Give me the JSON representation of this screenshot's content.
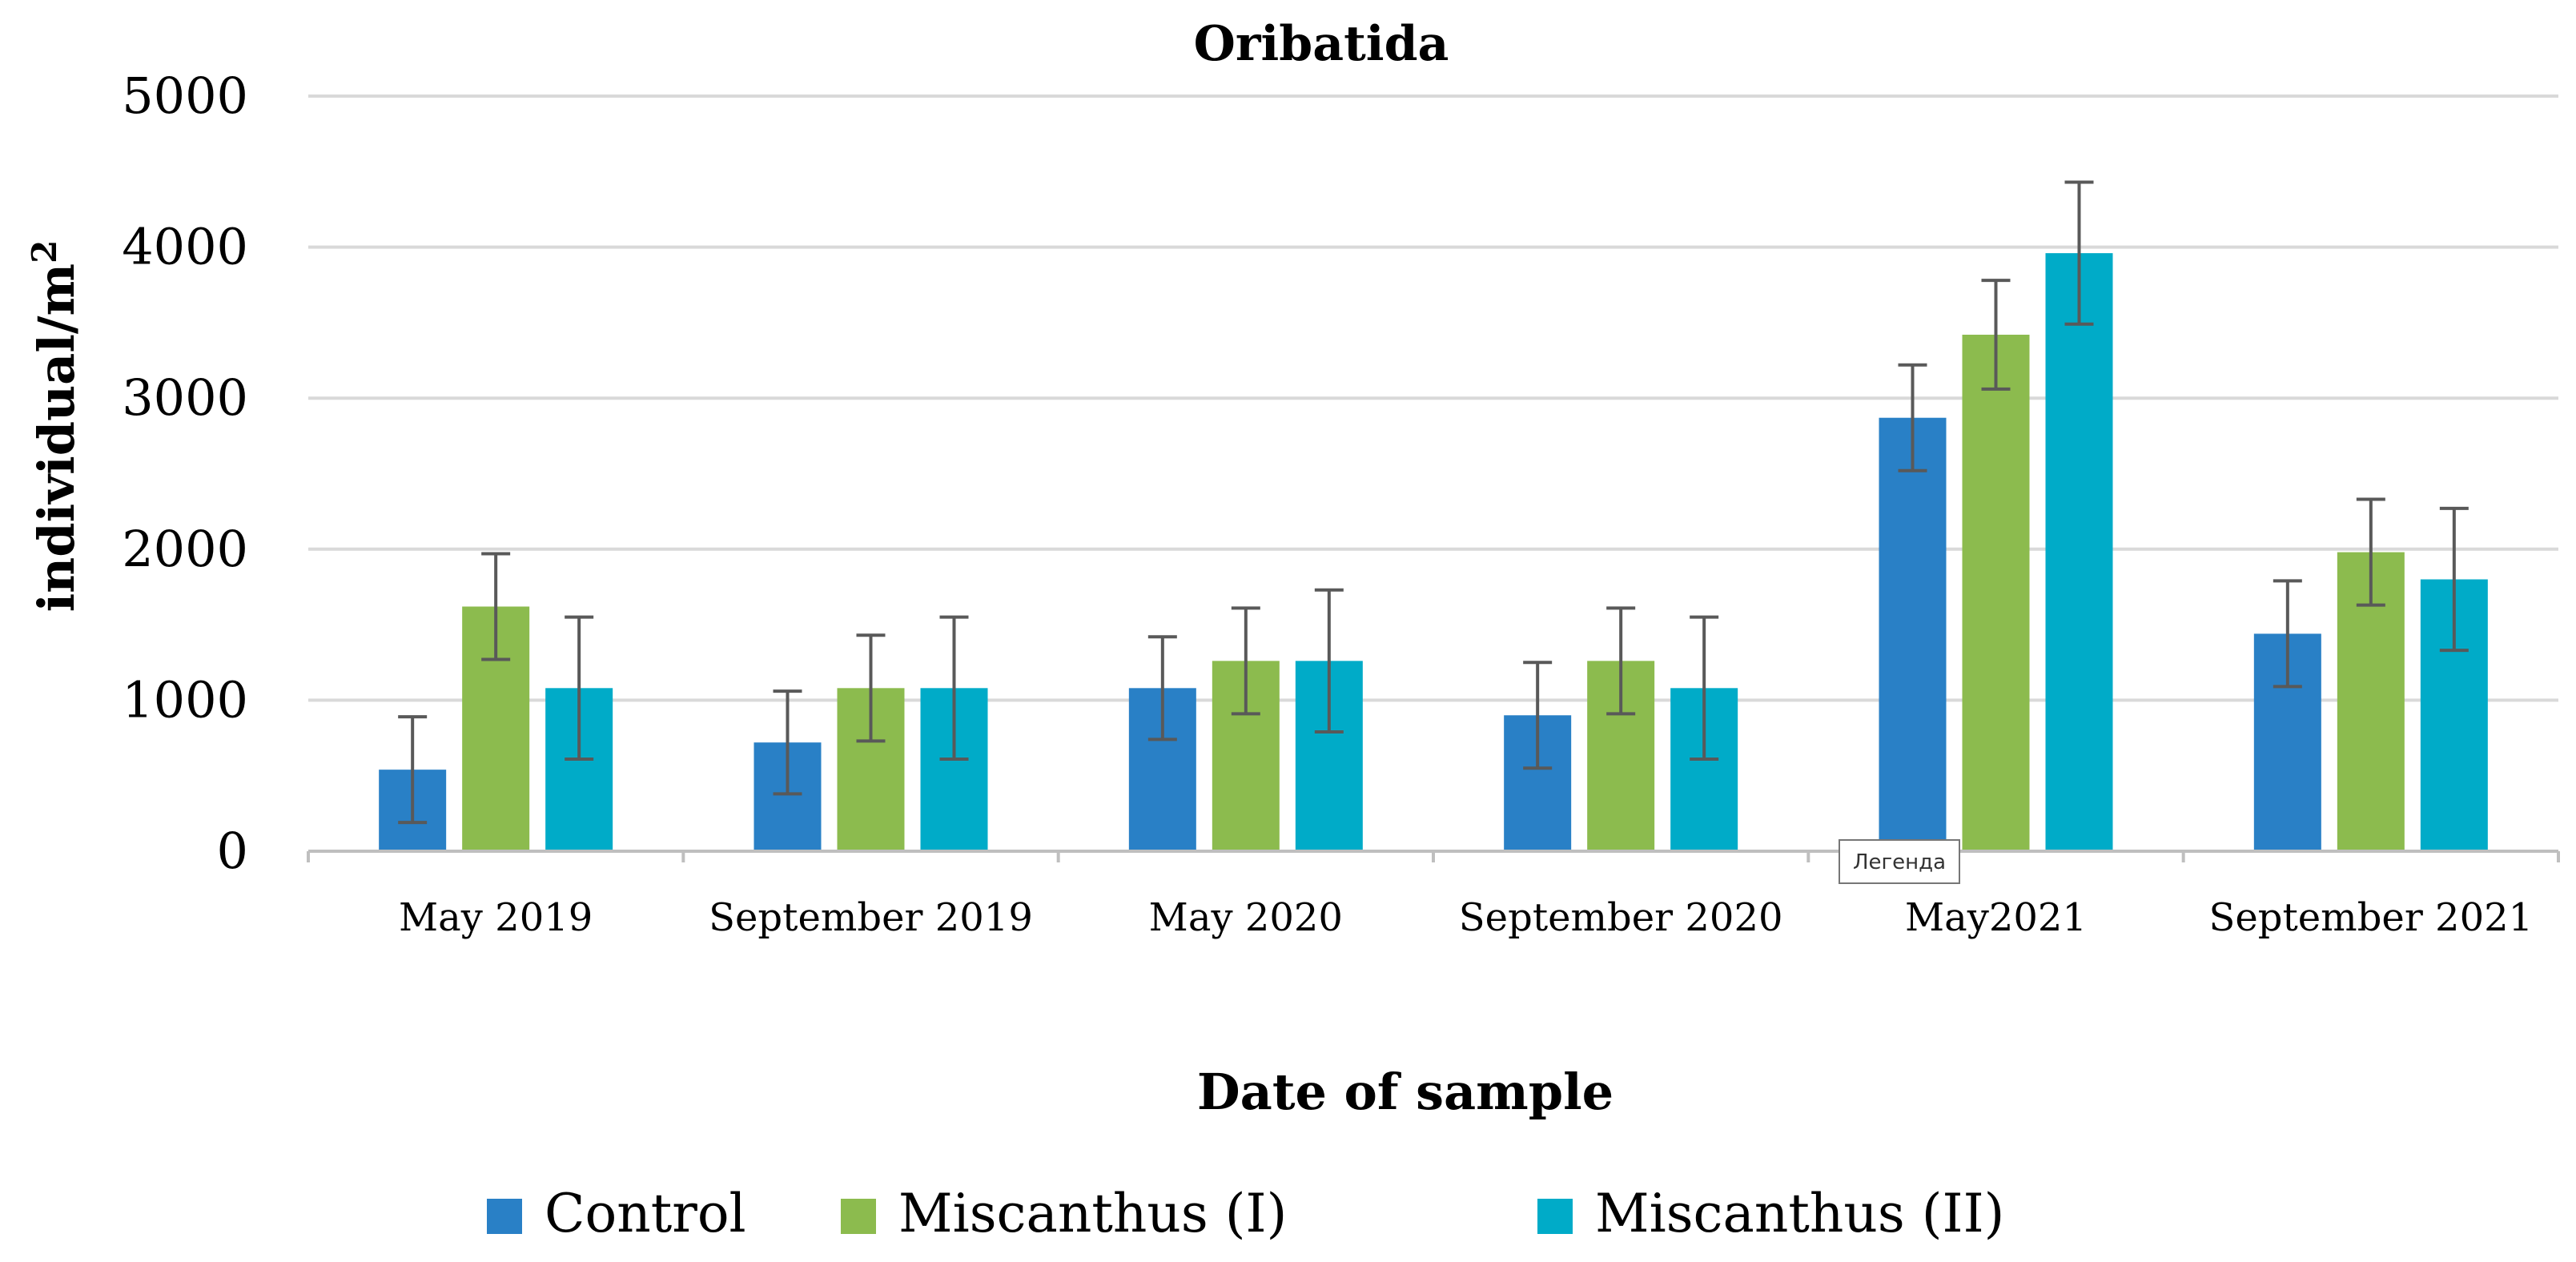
{
  "chart_data": {
    "type": "bar",
    "title": "Oribatida",
    "xlabel": "Date of sample",
    "ylabel": "individual/m",
    "ylabel_superscript": "2",
    "ylim": [
      0,
      5000
    ],
    "yticks": [
      0,
      1000,
      2000,
      3000,
      4000,
      5000
    ],
    "grid": true,
    "legend_position": "bottom",
    "categories": [
      "May 2019",
      "September 2019",
      "May 2020",
      "September 2020",
      "May2021",
      "September 2021"
    ],
    "series": [
      {
        "name": "Control",
        "color": "#2980C6",
        "values": [
          540,
          720,
          1080,
          900,
          2870,
          1440
        ],
        "errors": [
          350,
          340,
          340,
          350,
          350,
          350
        ]
      },
      {
        "name": "Miscanthus (I)",
        "color": "#8CBB4E",
        "values": [
          1620,
          1080,
          1260,
          1260,
          3420,
          1980
        ],
        "errors": [
          350,
          350,
          350,
          350,
          360,
          350
        ]
      },
      {
        "name": "Miscanthus (II)",
        "color": "#00ABC8",
        "values": [
          1080,
          1080,
          1260,
          1080,
          3960,
          1800
        ],
        "errors": [
          470,
          470,
          470,
          470,
          470,
          470
        ]
      }
    ],
    "tooltip": "Легенда"
  }
}
